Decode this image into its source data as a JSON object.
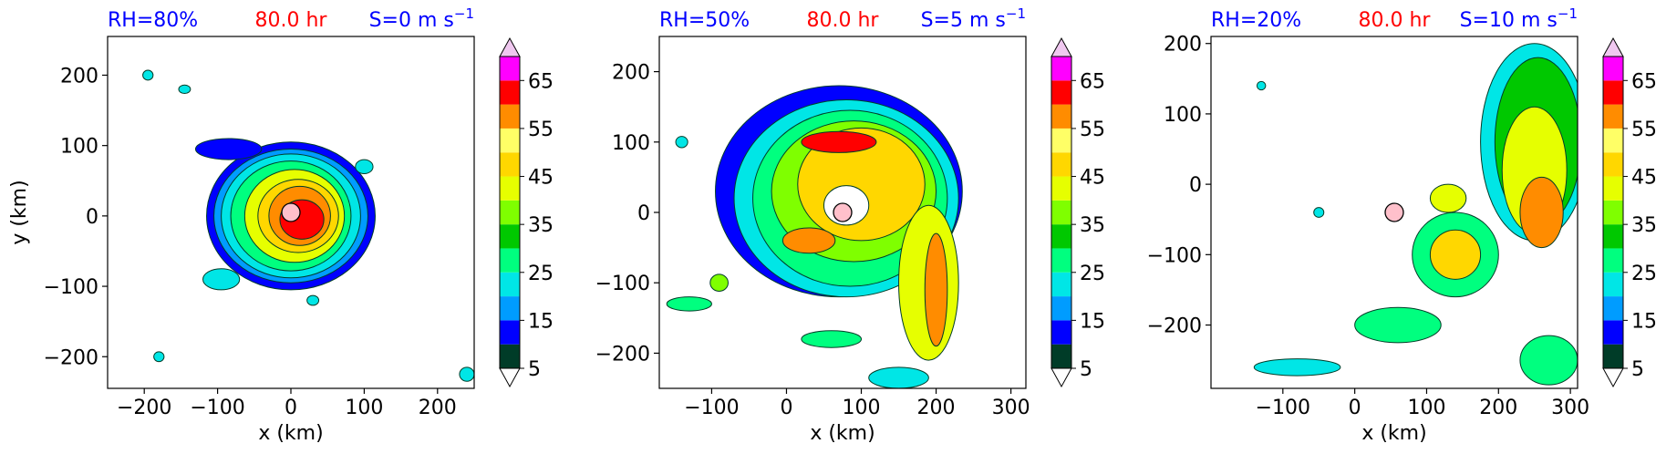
{
  "figure": {
    "colorbar_colors": [
      "#003c28",
      "#0000ff",
      "#009cff",
      "#00e6e6",
      "#00ff7f",
      "#00c800",
      "#7fff00",
      "#e6ff00",
      "#ffd700",
      "#ffff66",
      "#ff8c00",
      "#ff0000",
      "#ff00ff",
      "#dd55ee",
      "#f0c8f0"
    ],
    "overflow_color": "#ffffff",
    "colorbar_ticks": [
      "5",
      "15",
      "25",
      "35",
      "45",
      "55",
      "65"
    ],
    "center_marker_color": "#ffc0cb"
  },
  "chart_data": [
    {
      "type": "heatmap",
      "title_left": "RH=80%",
      "title_center": "80.0 hr",
      "title_right": "S=0 m s",
      "title_right_sup": "−1",
      "xlabel": "x (km)",
      "ylabel": "y (km)",
      "xlim": [
        -250,
        250
      ],
      "ylim": [
        -245,
        255
      ],
      "xticks": [
        -200,
        -100,
        0,
        100,
        200
      ],
      "xtick_labels": [
        "−200",
        "−100",
        "0",
        "100",
        "200"
      ],
      "yticks": [
        -200,
        -100,
        0,
        100,
        200
      ],
      "ytick_labels": [
        "−200",
        "−100",
        "0",
        "100",
        "200"
      ],
      "center": [
        0,
        5
      ],
      "colorbar_levels": [
        5,
        10,
        15,
        20,
        25,
        30,
        35,
        40,
        45,
        50,
        55,
        60,
        65,
        70
      ],
      "blobs": [
        {
          "x": 0,
          "y": 0,
          "rx": 115,
          "ry": 105,
          "level": 1
        },
        {
          "x": 0,
          "y": 0,
          "rx": 105,
          "ry": 95,
          "level": 2
        },
        {
          "x": 0,
          "y": 0,
          "rx": 95,
          "ry": 88,
          "level": 3
        },
        {
          "x": 0,
          "y": 0,
          "rx": 82,
          "ry": 78,
          "level": 4
        },
        {
          "x": 5,
          "y": 0,
          "rx": 68,
          "ry": 66,
          "level": 7
        },
        {
          "x": 10,
          "y": 0,
          "rx": 55,
          "ry": 52,
          "level": 8
        },
        {
          "x": 12,
          "y": 0,
          "rx": 42,
          "ry": 42,
          "level": 10
        },
        {
          "x": 15,
          "y": -5,
          "rx": 30,
          "ry": 28,
          "level": 11
        },
        {
          "x": -85,
          "y": 95,
          "rx": 45,
          "ry": 15,
          "level": 1
        },
        {
          "x": -95,
          "y": -90,
          "rx": 25,
          "ry": 15,
          "level": 3
        },
        {
          "x": 100,
          "y": 70,
          "rx": 12,
          "ry": 10,
          "level": 3
        },
        {
          "x": -145,
          "y": 180,
          "rx": 8,
          "ry": 6,
          "level": 3
        },
        {
          "x": -195,
          "y": 200,
          "rx": 7,
          "ry": 7,
          "level": 3
        },
        {
          "x": 240,
          "y": -225,
          "rx": 10,
          "ry": 10,
          "level": 3
        },
        {
          "x": -180,
          "y": -200,
          "rx": 7,
          "ry": 7,
          "level": 3
        },
        {
          "x": 30,
          "y": -120,
          "rx": 8,
          "ry": 7,
          "level": 3
        }
      ]
    },
    {
      "type": "heatmap",
      "title_left": "RH=50%",
      "title_center": "80.0 hr",
      "title_right": "S=5 m s",
      "title_right_sup": "−1",
      "xlabel": "x (km)",
      "ylabel": "",
      "xlim": [
        -170,
        320
      ],
      "ylim": [
        -250,
        250
      ],
      "xticks": [
        -100,
        0,
        100,
        200,
        300
      ],
      "xtick_labels": [
        "−100",
        "0",
        "100",
        "200",
        "300"
      ],
      "yticks": [
        -200,
        -100,
        0,
        100,
        200
      ],
      "ytick_labels": [
        "−200",
        "−100",
        "0",
        "100",
        "200"
      ],
      "center": [
        75,
        0
      ],
      "colorbar_levels": [
        5,
        10,
        15,
        20,
        25,
        30,
        35,
        40,
        45,
        50,
        55,
        60,
        65,
        70
      ],
      "blobs": [
        {
          "x": 70,
          "y": 30,
          "rx": 165,
          "ry": 150,
          "level": 1
        },
        {
          "x": 80,
          "y": 20,
          "rx": 150,
          "ry": 140,
          "level": 3
        },
        {
          "x": 85,
          "y": 20,
          "rx": 130,
          "ry": 125,
          "level": 4
        },
        {
          "x": 90,
          "y": 30,
          "rx": 110,
          "ry": 100,
          "level": 6
        },
        {
          "x": 100,
          "y": 40,
          "rx": 85,
          "ry": 80,
          "level": 8
        },
        {
          "x": 190,
          "y": -100,
          "rx": 40,
          "ry": 110,
          "level": 7
        },
        {
          "x": 200,
          "y": -110,
          "rx": 15,
          "ry": 80,
          "level": 10
        },
        {
          "x": 70,
          "y": 100,
          "rx": 50,
          "ry": 15,
          "level": 11
        },
        {
          "x": 30,
          "y": -40,
          "rx": 35,
          "ry": 18,
          "level": 10
        },
        {
          "x": 80,
          "y": 10,
          "rx": 30,
          "ry": 28,
          "level": -1
        },
        {
          "x": 60,
          "y": -180,
          "rx": 40,
          "ry": 12,
          "level": 4
        },
        {
          "x": -130,
          "y": -130,
          "rx": 30,
          "ry": 10,
          "level": 4
        },
        {
          "x": -90,
          "y": -100,
          "rx": 12,
          "ry": 12,
          "level": 6
        },
        {
          "x": 150,
          "y": -235,
          "rx": 40,
          "ry": 15,
          "level": 3
        },
        {
          "x": -140,
          "y": 100,
          "rx": 8,
          "ry": 8,
          "level": 3
        }
      ]
    },
    {
      "type": "heatmap",
      "title_left": "RH=20%",
      "title_center": "80.0 hr",
      "title_right": "S=10 m s",
      "title_right_sup": "−1",
      "xlabel": "x (km)",
      "ylabel": "",
      "xlim": [
        -200,
        310
      ],
      "ylim": [
        -290,
        210
      ],
      "xticks": [
        -100,
        0,
        100,
        200,
        300
      ],
      "xtick_labels": [
        "−100",
        "0",
        "100",
        "200",
        "300"
      ],
      "yticks": [
        -200,
        -100,
        0,
        100,
        200
      ],
      "ytick_labels": [
        "−200",
        "−100",
        "0",
        "100",
        "200"
      ],
      "center": [
        55,
        -40
      ],
      "colorbar_levels": [
        5,
        10,
        15,
        20,
        25,
        30,
        35,
        40,
        45,
        50,
        55,
        60,
        65,
        70
      ],
      "blobs": [
        {
          "x": 250,
          "y": 60,
          "rx": 75,
          "ry": 140,
          "level": 3
        },
        {
          "x": 255,
          "y": 60,
          "rx": 60,
          "ry": 120,
          "level": 5
        },
        {
          "x": 250,
          "y": 20,
          "rx": 45,
          "ry": 90,
          "level": 7
        },
        {
          "x": 260,
          "y": -40,
          "rx": 30,
          "ry": 50,
          "level": 10
        },
        {
          "x": 140,
          "y": -100,
          "rx": 60,
          "ry": 60,
          "level": 4
        },
        {
          "x": 140,
          "y": -100,
          "rx": 35,
          "ry": 35,
          "level": 8
        },
        {
          "x": 130,
          "y": -20,
          "rx": 25,
          "ry": 20,
          "level": 7
        },
        {
          "x": 60,
          "y": -200,
          "rx": 60,
          "ry": 25,
          "level": 4
        },
        {
          "x": 270,
          "y": -250,
          "rx": 40,
          "ry": 35,
          "level": 4
        },
        {
          "x": -80,
          "y": -260,
          "rx": 60,
          "ry": 12,
          "level": 3
        },
        {
          "x": -50,
          "y": -40,
          "rx": 7,
          "ry": 7,
          "level": 3
        },
        {
          "x": -130,
          "y": 140,
          "rx": 6,
          "ry": 6,
          "level": 3
        }
      ]
    }
  ]
}
